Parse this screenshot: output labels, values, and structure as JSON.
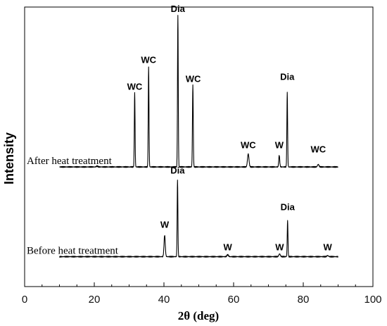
{
  "chart_data": {
    "type": "line",
    "xlabel": "2θ (deg)",
    "ylabel": "Intensity",
    "xlim": [
      0,
      100
    ],
    "ylim": [
      0,
      1
    ],
    "x_ticks": [
      0,
      20,
      40,
      60,
      80,
      100
    ],
    "grid": false,
    "legend": "none",
    "series": [
      {
        "name": "After heat treatment",
        "label_x": 0.5,
        "baseline": 0.428,
        "x_start": 10,
        "x_end": 90,
        "peaks": [
          {
            "x": 20.8,
            "y": 0.431,
            "w": 0.3
          },
          {
            "x": 31.6,
            "y": 0.694,
            "w": 0.15
          },
          {
            "x": 35.6,
            "y": 0.785,
            "w": 0.15
          },
          {
            "x": 44.0,
            "y": 0.971,
            "w": 0.15
          },
          {
            "x": 48.3,
            "y": 0.721,
            "w": 0.16
          },
          {
            "x": 64.2,
            "y": 0.475,
            "w": 0.3
          },
          {
            "x": 73.1,
            "y": 0.47,
            "w": 0.2
          },
          {
            "x": 75.4,
            "y": 0.694,
            "w": 0.15
          },
          {
            "x": 84.3,
            "y": 0.437,
            "w": 0.3
          }
        ],
        "annotations": [
          {
            "text": "WC",
            "x": 31.6,
            "y": 0.699
          },
          {
            "text": "WC",
            "x": 35.6,
            "y": 0.795
          },
          {
            "text": "Dia",
            "x": 44.0,
            "y": 0.977
          },
          {
            "text": "WC",
            "x": 48.4,
            "y": 0.727
          },
          {
            "text": "WC",
            "x": 64.2,
            "y": 0.49
          },
          {
            "text": "W",
            "x": 73.1,
            "y": 0.49
          },
          {
            "text": "Dia",
            "x": 75.4,
            "y": 0.734
          },
          {
            "text": "WC",
            "x": 84.3,
            "y": 0.475
          }
        ]
      },
      {
        "name": "Before heat treatment",
        "label_x": 0.5,
        "baseline": 0.107,
        "x_start": 10,
        "x_end": 90,
        "peaks": [
          {
            "x": 40.2,
            "y": 0.184,
            "w": 0.25
          },
          {
            "x": 43.9,
            "y": 0.383,
            "w": 0.15
          },
          {
            "x": 58.3,
            "y": 0.114,
            "w": 0.3
          },
          {
            "x": 73.2,
            "y": 0.117,
            "w": 0.3
          },
          {
            "x": 75.5,
            "y": 0.236,
            "w": 0.15
          },
          {
            "x": 87.0,
            "y": 0.111,
            "w": 0.3
          }
        ],
        "annotations": [
          {
            "text": "W",
            "x": 40.2,
            "y": 0.205
          },
          {
            "text": "Dia",
            "x": 43.9,
            "y": 0.399
          },
          {
            "text": "W",
            "x": 58.3,
            "y": 0.125
          },
          {
            "text": "W",
            "x": 73.2,
            "y": 0.125
          },
          {
            "text": "Dia",
            "x": 75.5,
            "y": 0.268
          },
          {
            "text": "W",
            "x": 87.0,
            "y": 0.125
          }
        ]
      }
    ]
  }
}
